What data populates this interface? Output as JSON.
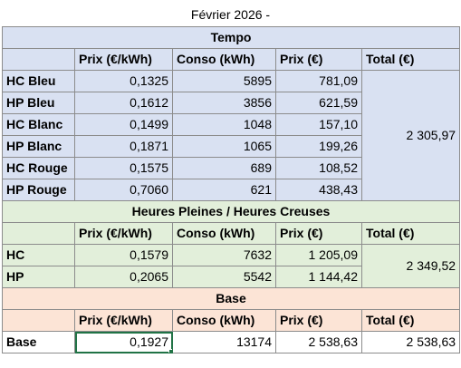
{
  "title": "Février 2026 -",
  "headers": {
    "prix": "Prix (€/kWh)",
    "conso": "Conso (kWh)",
    "cout": "Prix (€)",
    "total": "Total (€)"
  },
  "tempo": {
    "section": "Tempo",
    "rows": [
      {
        "label": "HC Bleu",
        "prix": "0,1325",
        "conso": "5895",
        "cout": "781,09"
      },
      {
        "label": "HP Bleu",
        "prix": "0,1612",
        "conso": "3856",
        "cout": "621,59"
      },
      {
        "label": "HC Blanc",
        "prix": "0,1499",
        "conso": "1048",
        "cout": "157,10"
      },
      {
        "label": "HP Blanc",
        "prix": "0,1871",
        "conso": "1065",
        "cout": "199,26"
      },
      {
        "label": "HC Rouge",
        "prix": "0,1575",
        "conso": "689",
        "cout": "108,52"
      },
      {
        "label": "HP Rouge",
        "prix": "0,7060",
        "conso": "621",
        "cout": "438,43"
      }
    ],
    "total": "2 305,97"
  },
  "hphc": {
    "section": "Heures Pleines / Heures Creuses",
    "rows": [
      {
        "label": "HC",
        "prix": "0,1579",
        "conso": "7632",
        "cout": "1 205,09"
      },
      {
        "label": "HP",
        "prix": "0,2065",
        "conso": "5542",
        "cout": "1 144,42"
      }
    ],
    "total": "2 349,52"
  },
  "base": {
    "section": "Base",
    "row": {
      "label": "Base",
      "prix": "0,1927",
      "conso": "13174",
      "cout": "2 538,63",
      "total": "2 538,63"
    }
  }
}
